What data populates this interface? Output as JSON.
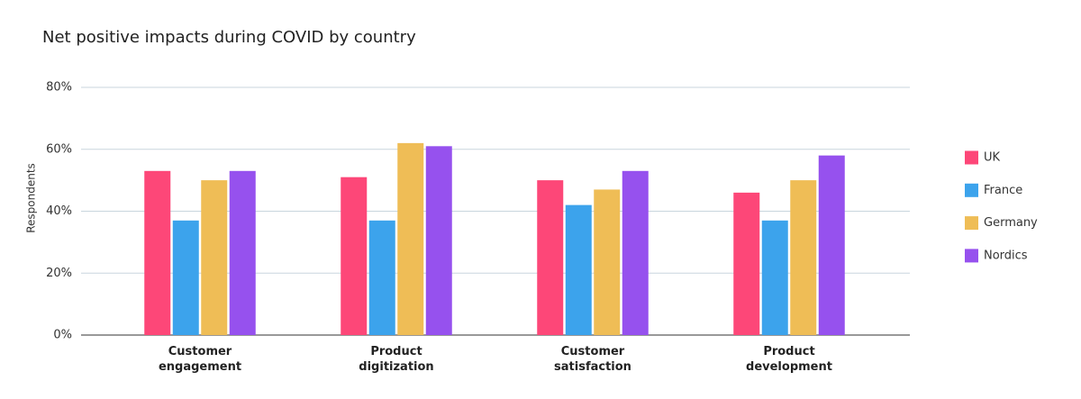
{
  "chart_data": {
    "type": "bar",
    "title": "Net positive impacts during COVID by country",
    "y_label": "Respondents",
    "categories": [
      "Customer engagement",
      "Product digitization",
      "Customer satisfaction",
      "Product development"
    ],
    "series": [
      {
        "name": "UK",
        "color": "#fd4778",
        "values": [
          53,
          51,
          50,
          46
        ]
      },
      {
        "name": "France",
        "color": "#3ca3ec",
        "values": [
          37,
          37,
          42,
          37
        ]
      },
      {
        "name": "Germany",
        "color": "#efbd56",
        "values": [
          50,
          62,
          47,
          50
        ]
      },
      {
        "name": "Nordics",
        "color": "#9651ee",
        "values": [
          53,
          61,
          53,
          58
        ]
      }
    ],
    "ylim": [
      0,
      80
    ],
    "yticks": [
      {
        "value": 0,
        "label": "0%"
      },
      {
        "value": 20,
        "label": "20%"
      },
      {
        "value": 40,
        "label": "40%"
      },
      {
        "value": 60,
        "label": "60%"
      },
      {
        "value": 80,
        "label": "80%"
      }
    ],
    "grid": true,
    "legend": "right"
  }
}
